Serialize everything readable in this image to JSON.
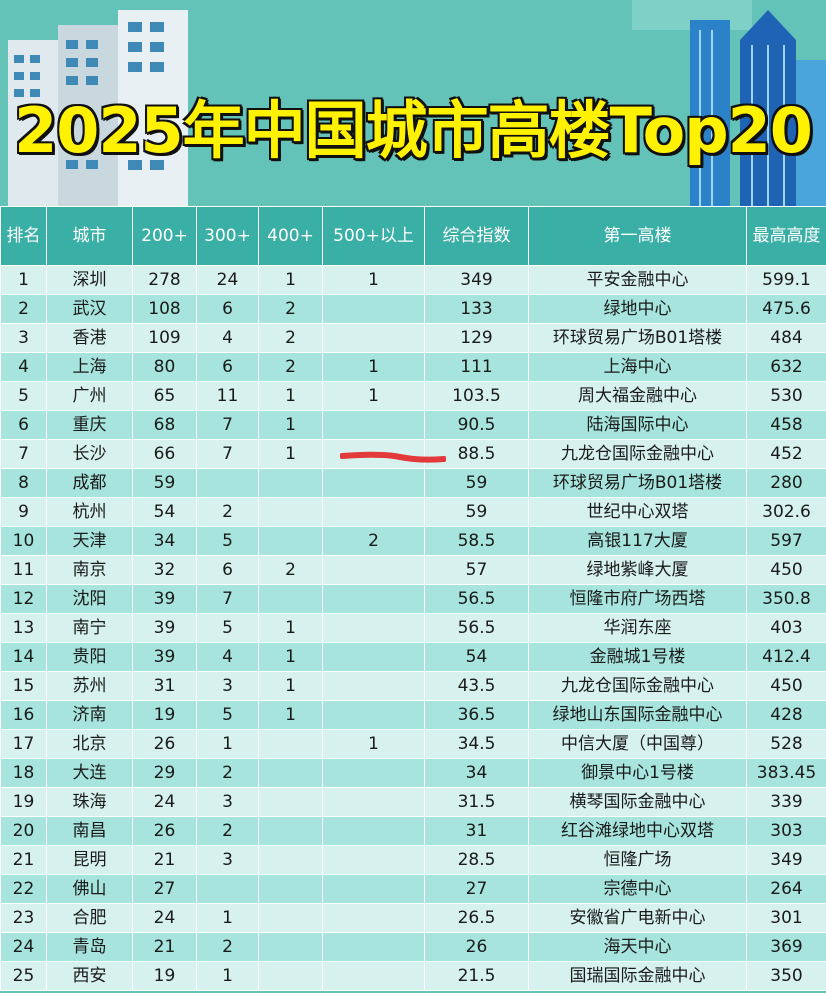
{
  "title": "2025年中国城市高楼Top20",
  "colors": {
    "header_bg": "#63c3b8",
    "table_header_bg": "#3aafa5",
    "row_light": "#d7f2ee",
    "row_dark": "#a6e4dd",
    "title_yellow": "#fff200",
    "annotation_red": "#e23a3a"
  },
  "columns": [
    "排名",
    "城市",
    "200+",
    "300+",
    "400+",
    "500+以上",
    "综合指数",
    "第一高楼",
    "最高高度"
  ],
  "rows": [
    [
      "1",
      "深圳",
      "278",
      "24",
      "1",
      "1",
      "349",
      "平安金融中心",
      "599.1"
    ],
    [
      "2",
      "武汉",
      "108",
      "6",
      "2",
      "",
      "133",
      "绿地中心",
      "475.6"
    ],
    [
      "3",
      "香港",
      "109",
      "4",
      "2",
      "",
      "129",
      "环球贸易广场B01塔楼",
      "484"
    ],
    [
      "4",
      "上海",
      "80",
      "6",
      "2",
      "1",
      "111",
      "上海中心",
      "632"
    ],
    [
      "5",
      "广州",
      "65",
      "11",
      "1",
      "1",
      "103.5",
      "周大福金融中心",
      "530"
    ],
    [
      "6",
      "重庆",
      "68",
      "7",
      "1",
      "",
      "90.5",
      "陆海国际中心",
      "458"
    ],
    [
      "7",
      "长沙",
      "66",
      "7",
      "1",
      "",
      "88.5",
      "九龙仓国际金融中心",
      "452"
    ],
    [
      "8",
      "成都",
      "59",
      "",
      "",
      "",
      "59",
      "环球贸易广场B01塔楼",
      "280"
    ],
    [
      "9",
      "杭州",
      "54",
      "2",
      "",
      "",
      "59",
      "世纪中心双塔",
      "302.6"
    ],
    [
      "10",
      "天津",
      "34",
      "5",
      "",
      "2",
      "58.5",
      "高银117大厦",
      "597"
    ],
    [
      "11",
      "南京",
      "32",
      "6",
      "2",
      "",
      "57",
      "绿地紫峰大厦",
      "450"
    ],
    [
      "12",
      "沈阳",
      "39",
      "7",
      "",
      "",
      "56.5",
      "恒隆市府广场西塔",
      "350.8"
    ],
    [
      "13",
      "南宁",
      "39",
      "5",
      "1",
      "",
      "56.5",
      "华润东座",
      "403"
    ],
    [
      "14",
      "贵阳",
      "39",
      "4",
      "1",
      "",
      "54",
      "金融城1号楼",
      "412.4"
    ],
    [
      "15",
      "苏州",
      "31",
      "3",
      "1",
      "",
      "43.5",
      "九龙仓国际金融中心",
      "450"
    ],
    [
      "16",
      "济南",
      "19",
      "5",
      "1",
      "",
      "36.5",
      "绿地山东国际金融中心",
      "428"
    ],
    [
      "17",
      "北京",
      "26",
      "1",
      "",
      "1",
      "34.5",
      "中信大厦（中国尊）",
      "528"
    ],
    [
      "18",
      "大连",
      "29",
      "2",
      "",
      "",
      "34",
      "御景中心1号楼",
      "383.45"
    ],
    [
      "19",
      "珠海",
      "24",
      "3",
      "",
      "",
      "31.5",
      "横琴国际金融中心",
      "339"
    ],
    [
      "20",
      "南昌",
      "26",
      "2",
      "",
      "",
      "31",
      "红谷滩绿地中心双塔",
      "303"
    ],
    [
      "21",
      "昆明",
      "21",
      "3",
      "",
      "",
      "28.5",
      "恒隆广场",
      "349"
    ],
    [
      "22",
      "佛山",
      "27",
      "",
      "",
      "",
      "27",
      "宗德中心",
      "264"
    ],
    [
      "23",
      "合肥",
      "24",
      "1",
      "",
      "",
      "26.5",
      "安徽省广电新中心",
      "301"
    ],
    [
      "24",
      "青岛",
      "21",
      "2",
      "",
      "",
      "26",
      "海天中心",
      "369"
    ],
    [
      "25",
      "西安",
      "19",
      "1",
      "",
      "",
      "21.5",
      "国瑞国际金融中心",
      "350"
    ]
  ]
}
